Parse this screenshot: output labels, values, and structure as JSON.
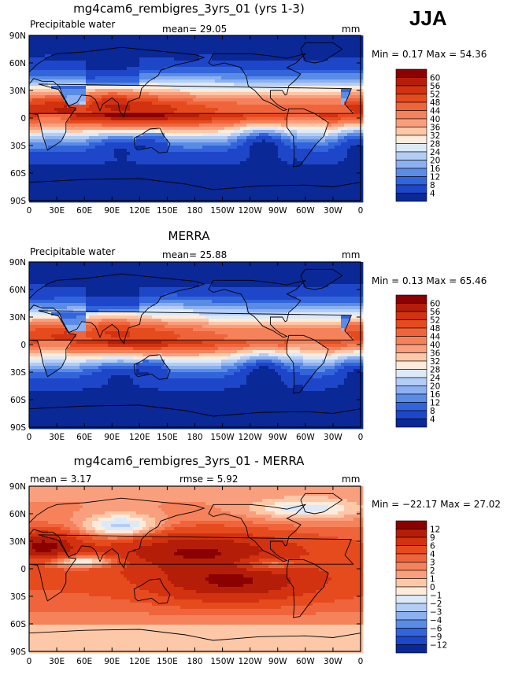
{
  "season": "JJA",
  "x_ticks": [
    "0",
    "30E",
    "60E",
    "90E",
    "120E",
    "150E",
    "180",
    "150W",
    "120W",
    "90W",
    "60W",
    "30W",
    "0"
  ],
  "y_ticks": [
    "90N",
    "60N",
    "30N",
    "0",
    "30S",
    "60S",
    "90S"
  ],
  "panels": [
    {
      "title": "mg4cam6_rembigres_3yrs_01 (yrs 1-3)",
      "left_label": "Precipitable water",
      "center_label": "mean=   29.05",
      "right_label": "mm",
      "minmax": "Min =    0.17  Max =   54.36",
      "colorbar_labels": [
        "60",
        "56",
        "52",
        "48",
        "44",
        "40",
        "36",
        "32",
        "28",
        "24",
        "20",
        "16",
        "12",
        "8",
        "4"
      ],
      "colorbar_colors": [
        "#8b0000",
        "#b41e08",
        "#d2320f",
        "#e64b1e",
        "#f0643c",
        "#f5825a",
        "#fa9f7d",
        "#fdc8a8",
        "#fdebdc",
        "#dceaf8",
        "#b4cdf5",
        "#8cb0f0",
        "#5a8ce6",
        "#3264dc",
        "#1e46c8",
        "#0a2896"
      ],
      "field": "abs"
    },
    {
      "title": "MERRA",
      "left_label": "Precipitable water",
      "center_label": "mean=   25.88",
      "right_label": "mm",
      "minmax": "Min =    0.13  Max =   65.46",
      "colorbar_labels": [
        "60",
        "56",
        "52",
        "48",
        "44",
        "40",
        "36",
        "32",
        "28",
        "24",
        "20",
        "16",
        "12",
        "8",
        "4"
      ],
      "colorbar_colors": [
        "#8b0000",
        "#b41e08",
        "#d2320f",
        "#e64b1e",
        "#f0643c",
        "#f5825a",
        "#fa9f7d",
        "#fdc8a8",
        "#fdebdc",
        "#dceaf8",
        "#b4cdf5",
        "#8cb0f0",
        "#5a8ce6",
        "#3264dc",
        "#1e46c8",
        "#0a2896"
      ],
      "field": "abs"
    },
    {
      "title": "mg4cam6_rembigres_3yrs_01 - MERRA",
      "left_label": "mean =    3.17",
      "center_label": "rmse =    5.92",
      "right_label": "mm",
      "minmax": "Min = −22.17  Max =   27.02",
      "colorbar_labels": [
        "12",
        "9",
        "6",
        "4",
        "3",
        "2",
        "1",
        "0",
        "−1",
        "−2",
        "−3",
        "−4",
        "−6",
        "−9",
        "−12"
      ],
      "colorbar_colors": [
        "#8b0000",
        "#b41e08",
        "#d2320f",
        "#e64b1e",
        "#f0643c",
        "#f5825a",
        "#fa9f7d",
        "#fdc8a8",
        "#fdebdc",
        "#dceaf8",
        "#b4cdf5",
        "#8cb0f0",
        "#5a8ce6",
        "#3264dc",
        "#1e46c8",
        "#0a2896"
      ],
      "field": "diff"
    }
  ]
}
